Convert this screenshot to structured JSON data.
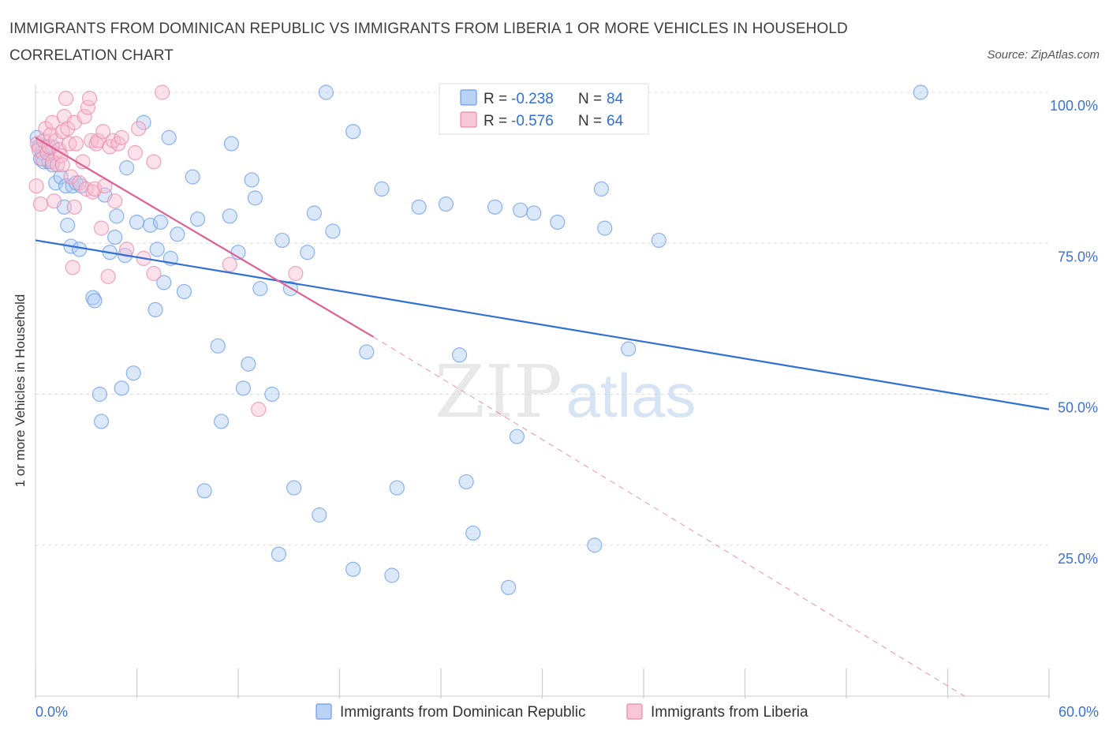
{
  "chart_data": {
    "type": "scatter",
    "title": "IMMIGRANTS FROM DOMINICAN REPUBLIC VS IMMIGRANTS FROM LIBERIA 1 OR MORE VEHICLES IN HOUSEHOLD CORRELATION CHART",
    "source": "Source: ZipAtlas.com",
    "xlabel": "",
    "ylabel": "1 or more Vehicles in Household",
    "xlim": [
      0,
      60
    ],
    "ylim": [
      0,
      100
    ],
    "x_tick_labels": [
      "0.0%",
      "60.0%"
    ],
    "y_tick_labels": [
      "100.0%",
      "75.0%",
      "50.0%",
      "25.0%"
    ],
    "y_ticks": [
      100,
      75,
      50,
      25
    ],
    "watermark": {
      "left": "ZIP",
      "right": "atlas"
    },
    "legend": {
      "items": [
        {
          "r_label": "R =",
          "r_value": "-0.238",
          "n_label": "N =",
          "n_value": "84"
        },
        {
          "r_label": "R =",
          "r_value": "-0.576",
          "n_label": "N =",
          "n_value": "64"
        }
      ]
    },
    "series": [
      {
        "name": "Immigrants from Dominican Republic",
        "color": "#6a9be8",
        "fill": "#aecbf3",
        "line_color": "#2f6fd6",
        "trend": {
          "x0": 0,
          "y0": 75.5,
          "x1": 60,
          "y1": 47.5
        },
        "points": [
          [
            0.1,
            92.5
          ],
          [
            0.2,
            91
          ],
          [
            0.3,
            89
          ],
          [
            0.4,
            90
          ],
          [
            0.5,
            88.5
          ],
          [
            0.6,
            91
          ],
          [
            0.8,
            88.5
          ],
          [
            1.0,
            88
          ],
          [
            1.0,
            91
          ],
          [
            1.2,
            85
          ],
          [
            1.5,
            86
          ],
          [
            1.7,
            81
          ],
          [
            1.8,
            84.5
          ],
          [
            1.9,
            78
          ],
          [
            2.1,
            74.5
          ],
          [
            2.2,
            84.5
          ],
          [
            2.4,
            85
          ],
          [
            2.6,
            74
          ],
          [
            2.7,
            84.5
          ],
          [
            3.4,
            66
          ],
          [
            3.5,
            65.5
          ],
          [
            3.8,
            50
          ],
          [
            3.9,
            45.5
          ],
          [
            4.1,
            83
          ],
          [
            4.4,
            73.5
          ],
          [
            4.7,
            76
          ],
          [
            4.8,
            79.5
          ],
          [
            5.1,
            51
          ],
          [
            5.3,
            73
          ],
          [
            5.4,
            87.5
          ],
          [
            5.8,
            53.5
          ],
          [
            6.0,
            78.5
          ],
          [
            6.4,
            95
          ],
          [
            6.8,
            78
          ],
          [
            7.1,
            64
          ],
          [
            7.2,
            74
          ],
          [
            7.4,
            78.5
          ],
          [
            7.6,
            68.5
          ],
          [
            7.9,
            92.5
          ],
          [
            8.0,
            72.5
          ],
          [
            8.4,
            76.5
          ],
          [
            8.8,
            67
          ],
          [
            9.3,
            86
          ],
          [
            9.6,
            79
          ],
          [
            10.0,
            34
          ],
          [
            10.8,
            58
          ],
          [
            11.0,
            45.5
          ],
          [
            11.5,
            79.5
          ],
          [
            11.6,
            91.5
          ],
          [
            12.0,
            73.5
          ],
          [
            12.3,
            51
          ],
          [
            12.6,
            55
          ],
          [
            12.8,
            85.5
          ],
          [
            13.0,
            82.5
          ],
          [
            13.3,
            67.5
          ],
          [
            14.0,
            50
          ],
          [
            14.4,
            23.5
          ],
          [
            14.6,
            75.5
          ],
          [
            15.1,
            67.5
          ],
          [
            15.3,
            34.5
          ],
          [
            16.1,
            73.5
          ],
          [
            16.5,
            80
          ],
          [
            16.8,
            30
          ],
          [
            17.2,
            100
          ],
          [
            17.6,
            77
          ],
          [
            18.8,
            21
          ],
          [
            18.8,
            93.5
          ],
          [
            19.6,
            57
          ],
          [
            20.5,
            84
          ],
          [
            21.1,
            20
          ],
          [
            21.4,
            34.5
          ],
          [
            22.7,
            81
          ],
          [
            24.3,
            81.5
          ],
          [
            25.1,
            56.5
          ],
          [
            25.5,
            35.5
          ],
          [
            25.9,
            27
          ],
          [
            27.2,
            81
          ],
          [
            28.0,
            18
          ],
          [
            28.5,
            43
          ],
          [
            28.7,
            80.5
          ],
          [
            29.5,
            80
          ],
          [
            30.9,
            78.5
          ],
          [
            33.1,
            25
          ],
          [
            33.5,
            84
          ],
          [
            33.7,
            77.5
          ],
          [
            35.1,
            57.5
          ],
          [
            36.9,
            75.5
          ],
          [
            52.4,
            100
          ]
        ]
      },
      {
        "name": "Immigrants from Liberia",
        "color": "#e98aa9",
        "fill": "#f6bdd0",
        "line_color": "#e06090",
        "trend": {
          "x0": 0,
          "y0": 92.5,
          "x1": 20,
          "y1": 59.5,
          "dash_to_x": 55,
          "dash_to_y": 0
        },
        "points": [
          [
            0.05,
            84.5
          ],
          [
            0.1,
            91.5
          ],
          [
            0.2,
            90.5
          ],
          [
            0.3,
            81.5
          ],
          [
            0.4,
            89
          ],
          [
            0.5,
            92
          ],
          [
            0.6,
            94
          ],
          [
            0.7,
            90
          ],
          [
            0.8,
            91
          ],
          [
            0.9,
            93
          ],
          [
            1.0,
            95
          ],
          [
            1.0,
            88.5
          ],
          [
            1.1,
            82
          ],
          [
            1.2,
            92
          ],
          [
            1.3,
            88
          ],
          [
            1.4,
            90.5
          ],
          [
            1.5,
            89.5
          ],
          [
            1.6,
            93.5
          ],
          [
            1.6,
            88
          ],
          [
            1.7,
            96
          ],
          [
            1.8,
            99
          ],
          [
            1.9,
            94
          ],
          [
            2.0,
            91.5
          ],
          [
            2.1,
            86
          ],
          [
            2.2,
            71
          ],
          [
            2.3,
            95
          ],
          [
            2.3,
            81
          ],
          [
            2.4,
            91.5
          ],
          [
            2.6,
            85
          ],
          [
            2.8,
            88.5
          ],
          [
            2.9,
            96
          ],
          [
            3.0,
            84
          ],
          [
            3.1,
            97.5
          ],
          [
            3.2,
            99
          ],
          [
            3.3,
            92
          ],
          [
            3.4,
            83.5
          ],
          [
            3.5,
            84
          ],
          [
            3.6,
            91.5
          ],
          [
            3.7,
            92
          ],
          [
            3.9,
            77.5
          ],
          [
            4.0,
            93.5
          ],
          [
            4.1,
            84.5
          ],
          [
            4.3,
            69.5
          ],
          [
            4.4,
            91
          ],
          [
            4.6,
            92
          ],
          [
            4.7,
            82
          ],
          [
            4.9,
            91.5
          ],
          [
            5.1,
            92.5
          ],
          [
            5.4,
            74
          ],
          [
            5.9,
            90
          ],
          [
            6.1,
            94
          ],
          [
            6.4,
            72.5
          ],
          [
            7.0,
            70
          ],
          [
            7.0,
            88.5
          ],
          [
            7.5,
            100
          ],
          [
            11.5,
            71.5
          ],
          [
            13.2,
            47.5
          ],
          [
            15.4,
            70
          ]
        ]
      }
    ]
  }
}
